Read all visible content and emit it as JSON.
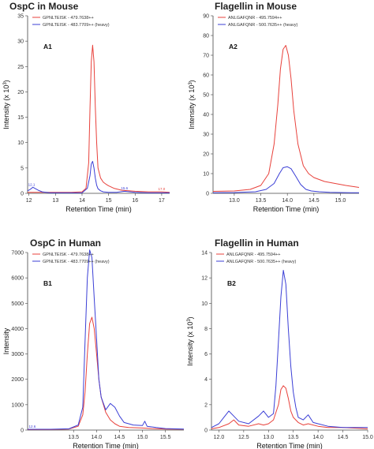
{
  "chart_data": [
    {
      "type": "line",
      "title": "OspC in Mouse",
      "panel_label": "A1",
      "xlabel": "Retention Time (min)",
      "ylabel_main": "Intensity (x 10",
      "ylabel_sup": "3",
      "ylabel_end": ")",
      "xlim": [
        11.95,
        17.3
      ],
      "ylim": [
        0,
        35
      ],
      "xticks": [
        12,
        13,
        14,
        15,
        16,
        17
      ],
      "yticks": [
        0,
        5,
        10,
        15,
        20,
        25,
        30,
        35
      ],
      "legend": [
        "GPNLTEISK - 479.7638++",
        "GPNLTEISK - 483.7709++ (heavy)"
      ],
      "series": [
        {
          "name": "GPNLTEISK - 479.7638++",
          "color": "#e8413b",
          "x": [
            11.95,
            12.4,
            13.0,
            13.6,
            14.0,
            14.15,
            14.25,
            14.3,
            14.35,
            14.4,
            14.45,
            14.5,
            14.55,
            14.6,
            14.7,
            14.8,
            14.9,
            15.0,
            15.2,
            15.5,
            16.0,
            16.5,
            17.0,
            17.3
          ],
          "y": [
            0.2,
            0.2,
            0.2,
            0.2,
            0.3,
            1.0,
            6.0,
            17.0,
            26.0,
            29.2,
            26.0,
            17.0,
            10.0,
            5.0,
            3.0,
            2.2,
            1.8,
            1.5,
            1.0,
            0.6,
            0.4,
            0.3,
            0.3,
            0.2
          ]
        },
        {
          "name": "GPNLTEISK - 483.7709++ (heavy)",
          "color": "#3b3fd6",
          "x": [
            11.95,
            12.05,
            12.15,
            12.25,
            12.35,
            12.5,
            12.8,
            13.5,
            14.0,
            14.2,
            14.3,
            14.35,
            14.4,
            14.45,
            14.5,
            14.55,
            14.6,
            14.7,
            14.8,
            15.0,
            15.3,
            15.6,
            16.0,
            16.5,
            17.0,
            17.3
          ],
          "y": [
            0.5,
            0.8,
            1.2,
            0.9,
            0.6,
            0.3,
            0.1,
            0.1,
            0.1,
            1.0,
            3.5,
            5.8,
            6.3,
            5.0,
            3.0,
            1.6,
            0.9,
            0.5,
            0.3,
            0.2,
            0.2,
            0.4,
            0.2,
            0.1,
            0.1,
            0.1
          ]
        }
      ],
      "annotations": [
        {
          "text": "12.1",
          "x": 12.1,
          "y": 1.3,
          "color": "#3b3fd6"
        },
        {
          "text": "15.6",
          "x": 15.6,
          "y": 0.6,
          "color": "#3b3fd6"
        },
        {
          "text": "17.0",
          "x": 17.0,
          "y": 0.5,
          "color": "#e8413b"
        }
      ]
    },
    {
      "type": "line",
      "title": "Flagellin in Mouse",
      "panel_label": "A2",
      "xlabel": "Retention Time (min)",
      "ylabel_main": "Intensity (x 10",
      "ylabel_sup": "3",
      "ylabel_end": ")",
      "xlim": [
        12.6,
        15.35
      ],
      "ylim": [
        0,
        90
      ],
      "xticks": [
        13.0,
        13.5,
        14.0,
        14.5,
        15.0
      ],
      "yticks": [
        0,
        10,
        20,
        30,
        40,
        50,
        60,
        70,
        80,
        90
      ],
      "legend": [
        "ANLGAFQNR - 495.7594++",
        "ANLGAFQNR - 500.7635++ (heavy)"
      ],
      "series": [
        {
          "name": "ANLGAFQNR - 495.7594++",
          "color": "#e8413b",
          "x": [
            12.6,
            13.0,
            13.3,
            13.5,
            13.65,
            13.75,
            13.82,
            13.87,
            13.92,
            13.97,
            14.02,
            14.07,
            14.12,
            14.2,
            14.3,
            14.4,
            14.5,
            14.7,
            14.9,
            15.1,
            15.35
          ],
          "y": [
            1.0,
            1.2,
            2.0,
            4.0,
            10.0,
            25.0,
            45.0,
            63.0,
            73.0,
            75.0,
            70.0,
            58.0,
            42.0,
            25.0,
            14.0,
            10.0,
            8.0,
            6.0,
            5.0,
            4.0,
            3.0
          ]
        },
        {
          "name": "ANLGAFQNR - 500.7635++ (heavy)",
          "color": "#3b3fd6",
          "x": [
            12.6,
            13.0,
            13.4,
            13.6,
            13.75,
            13.85,
            13.92,
            14.0,
            14.07,
            14.15,
            14.25,
            14.35,
            14.45,
            14.6,
            14.8,
            15.0,
            15.2,
            15.35
          ],
          "y": [
            0.3,
            0.4,
            0.8,
            2.0,
            5.0,
            10.0,
            13.0,
            13.5,
            12.5,
            9.0,
            4.5,
            2.0,
            1.2,
            0.8,
            0.5,
            0.4,
            0.3,
            0.3
          ]
        }
      ]
    },
    {
      "type": "line",
      "title": "OspC in Human",
      "panel_label": "B1",
      "xlabel": "Retention Time (min)",
      "ylabel_main": "Intensity",
      "ylabel_sup": "",
      "ylabel_end": "",
      "xlim": [
        12.5,
        15.9
      ],
      "ylim": [
        0,
        7000
      ],
      "xticks": [
        13.5,
        14.0,
        14.5,
        15.0,
        15.5
      ],
      "yticks": [
        0,
        1000,
        2000,
        3000,
        4000,
        5000,
        6000,
        7000
      ],
      "legend": [
        "GPNLTEISK - 479.7638++",
        "GPNLTEISK - 483.7709++ (heavy)"
      ],
      "series": [
        {
          "name": "GPNLTEISK - 479.7638++",
          "color": "#e8413b",
          "x": [
            12.5,
            13.0,
            13.4,
            13.6,
            13.7,
            13.75,
            13.8,
            13.85,
            13.9,
            13.95,
            14.0,
            14.05,
            14.1,
            14.2,
            14.3,
            14.4,
            14.5,
            14.7,
            15.0,
            15.2,
            15.5,
            15.9
          ],
          "y": [
            20,
            20,
            40,
            150,
            600,
            1500,
            3000,
            4200,
            4450,
            4000,
            3000,
            2000,
            1300,
            700,
            400,
            250,
            150,
            100,
            80,
            60,
            40,
            30
          ]
        },
        {
          "name": "GPNLTEISK - 483.7709++ (heavy)",
          "color": "#3b3fd6",
          "x": [
            12.5,
            13.0,
            13.4,
            13.6,
            13.7,
            13.75,
            13.8,
            13.85,
            13.9,
            13.95,
            14.0,
            14.05,
            14.1,
            14.2,
            14.3,
            14.4,
            14.5,
            14.6,
            14.8,
            15.0,
            15.05,
            15.1,
            15.3,
            15.5,
            15.9
          ],
          "y": [
            30,
            30,
            50,
            200,
            900,
            3500,
            6000,
            7100,
            6800,
            5200,
            3600,
            2000,
            1300,
            800,
            1050,
            900,
            550,
            300,
            200,
            180,
            350,
            150,
            100,
            60,
            40
          ]
        }
      ],
      "annotations": [
        {
          "text": "12.6",
          "x": 12.6,
          "y": 60,
          "color": "#3b3fd6"
        }
      ]
    },
    {
      "type": "line",
      "title": "Flagellin in Human",
      "panel_label": "B2",
      "xlabel": "Retention Time (min)",
      "ylabel_main": "Intensity (x 10",
      "ylabel_sup": "3",
      "ylabel_end": ")",
      "xlim": [
        11.85,
        15.0
      ],
      "ylim": [
        0,
        14
      ],
      "xticks": [
        12.0,
        12.5,
        13.0,
        13.5,
        14.0,
        14.5,
        15.0
      ],
      "yticks": [
        0,
        2,
        4,
        6,
        8,
        10,
        12,
        14
      ],
      "legend": [
        "ANLGAFQNR - 495.7594++",
        "ANLGAFQNR - 500.7635++ (heavy)"
      ],
      "series": [
        {
          "name": "ANLGAFQNR - 495.7594++",
          "color": "#e8413b",
          "x": [
            11.85,
            12.0,
            12.2,
            12.3,
            12.4,
            12.6,
            12.8,
            12.9,
            13.0,
            13.1,
            13.2,
            13.25,
            13.3,
            13.35,
            13.4,
            13.45,
            13.5,
            13.6,
            13.7,
            13.8,
            14.0,
            14.2,
            14.5,
            15.0
          ],
          "y": [
            0.1,
            0.2,
            0.5,
            0.8,
            0.4,
            0.3,
            0.5,
            0.4,
            0.5,
            0.8,
            2.0,
            3.2,
            3.5,
            3.3,
            2.5,
            1.5,
            1.0,
            0.6,
            0.4,
            0.5,
            0.3,
            0.2,
            0.2,
            0.1
          ]
        },
        {
          "name": "ANLGAFQNR - 500.7635++ (heavy)",
          "color": "#3b3fd6",
          "x": [
            11.85,
            12.0,
            12.1,
            12.2,
            12.3,
            12.4,
            12.6,
            12.8,
            12.9,
            13.0,
            13.1,
            13.15,
            13.2,
            13.25,
            13.3,
            13.35,
            13.4,
            13.45,
            13.5,
            13.55,
            13.6,
            13.7,
            13.8,
            13.9,
            14.0,
            14.2,
            14.5,
            14.8,
            15.0
          ],
          "y": [
            0.2,
            0.5,
            1.0,
            1.5,
            1.1,
            0.7,
            0.5,
            1.1,
            1.5,
            1.0,
            1.3,
            3.5,
            7.0,
            10.5,
            12.6,
            11.5,
            8.0,
            5.0,
            3.0,
            1.8,
            1.0,
            0.8,
            1.2,
            0.6,
            0.5,
            0.3,
            0.2,
            0.2,
            0.2
          ]
        }
      ]
    }
  ]
}
